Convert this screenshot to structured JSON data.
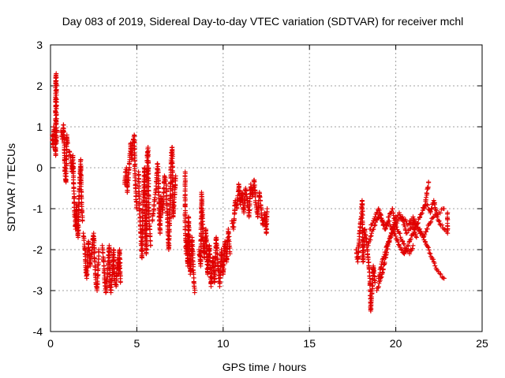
{
  "chart_data": {
    "type": "scatter",
    "title": "Day 083 of 2019, Sidereal Day-to-day VTEC variation (SDTVAR) for receiver mchl",
    "xlabel": "GPS time / hours",
    "ylabel": "SDTVAR / TECUs",
    "xlim": [
      0,
      25
    ],
    "ylim": [
      -4,
      3
    ],
    "xticks": [
      "0",
      "5",
      "10",
      "15",
      "20",
      "25"
    ],
    "yticks": [
      "-4",
      "-3",
      "-2",
      "-1",
      "0",
      "1",
      "2",
      "3"
    ],
    "grid": true,
    "marker": "plus",
    "color": "#e00000",
    "series": [
      {
        "name": "SDTVAR",
        "segments": [
          [
            [
              0.1,
              0.8
            ],
            [
              0.15,
              0.5
            ],
            [
              0.2,
              1.0
            ],
            [
              0.25,
              0.7
            ],
            [
              0.3,
              0.3
            ],
            [
              0.3,
              2.1
            ],
            [
              0.33,
              2.3
            ],
            [
              0.35,
              0.6
            ]
          ],
          [
            [
              0.6,
              0.9
            ],
            [
              0.7,
              0.7
            ],
            [
              0.75,
              1.05
            ],
            [
              0.8,
              0.5
            ],
            [
              0.85,
              -0.2
            ],
            [
              0.9,
              -0.35
            ],
            [
              0.95,
              0.8
            ],
            [
              1.0,
              0.6
            ]
          ],
          [
            [
              1.1,
              0.4
            ],
            [
              1.2,
              0.1
            ],
            [
              1.25,
              -0.1
            ],
            [
              1.3,
              0.3
            ],
            [
              1.35,
              -0.5
            ],
            [
              1.4,
              -1.1
            ],
            [
              1.45,
              -1.5
            ],
            [
              1.5,
              -0.9
            ],
            [
              1.55,
              -1.3
            ],
            [
              1.6,
              -1.7
            ],
            [
              1.65,
              -0.7
            ],
            [
              1.7,
              -0.3
            ],
            [
              1.75,
              0.2
            ],
            [
              1.8,
              -0.9
            ],
            [
              1.85,
              -1.3
            ]
          ],
          [
            [
              1.9,
              -1.6
            ],
            [
              2.0,
              -2.0
            ],
            [
              2.05,
              -2.5
            ],
            [
              2.1,
              -2.7
            ],
            [
              2.15,
              -2.2
            ],
            [
              2.2,
              -1.8
            ],
            [
              2.3,
              -2.4
            ],
            [
              2.4,
              -2.0
            ],
            [
              2.5,
              -1.6
            ],
            [
              2.55,
              -2.2
            ],
            [
              2.6,
              -2.6
            ],
            [
              2.65,
              -2.9
            ],
            [
              2.7,
              -3.0
            ],
            [
              2.75,
              -2.5
            ],
            [
              2.8,
              -2.0
            ]
          ],
          [
            [
              3.0,
              -1.9
            ],
            [
              3.1,
              -2.4
            ],
            [
              3.15,
              -2.8
            ],
            [
              3.2,
              -3.05
            ],
            [
              3.3,
              -2.6
            ],
            [
              3.35,
              -2.2
            ],
            [
              3.4,
              -1.9
            ],
            [
              3.45,
              -2.9
            ],
            [
              3.5,
              -3.05
            ],
            [
              3.6,
              -2.5
            ],
            [
              3.65,
              -2.0
            ],
            [
              3.7,
              -2.7
            ],
            [
              3.8,
              -2.9
            ],
            [
              3.9,
              -2.2
            ],
            [
              3.95,
              -2.6
            ],
            [
              4.0,
              -2.0
            ],
            [
              4.05,
              -2.8
            ]
          ],
          [
            [
              4.3,
              -0.4
            ],
            [
              4.35,
              -0.1
            ],
            [
              4.4,
              0.0
            ],
            [
              4.45,
              -0.6
            ],
            [
              4.5,
              -0.3
            ],
            [
              4.6,
              0.3
            ],
            [
              4.65,
              0.6
            ],
            [
              4.7,
              0.2
            ],
            [
              4.8,
              0.7
            ],
            [
              4.85,
              0.8
            ],
            [
              4.9,
              -0.2
            ],
            [
              4.95,
              -0.7
            ],
            [
              5.0,
              -1.0
            ]
          ],
          [
            [
              5.1,
              -0.1
            ],
            [
              5.15,
              -1.0
            ],
            [
              5.2,
              -1.4
            ],
            [
              5.25,
              -1.8
            ],
            [
              5.3,
              -2.2
            ],
            [
              5.35,
              -0.9
            ],
            [
              5.4,
              -0.6
            ],
            [
              5.45,
              0.0
            ],
            [
              5.5,
              -1.6
            ],
            [
              5.55,
              -2.1
            ],
            [
              5.6,
              0.3
            ],
            [
              5.65,
              0.5
            ],
            [
              5.7,
              -1.2
            ],
            [
              5.75,
              -1.5
            ],
            [
              5.8,
              -1.9
            ]
          ],
          [
            [
              5.9,
              -1.3
            ],
            [
              6.0,
              -0.9
            ],
            [
              6.1,
              -0.6
            ],
            [
              6.2,
              0.1
            ],
            [
              6.25,
              -0.2
            ],
            [
              6.3,
              -1.3
            ],
            [
              6.35,
              -1.6
            ],
            [
              6.4,
              -0.7
            ],
            [
              6.5,
              -1.1
            ],
            [
              6.6,
              -0.2
            ],
            [
              6.7,
              -0.4
            ],
            [
              6.75,
              -1.0
            ],
            [
              6.8,
              -1.5
            ],
            [
              6.85,
              -2.0
            ],
            [
              6.9,
              -1.3
            ],
            [
              6.95,
              -0.5
            ],
            [
              7.0,
              0.3
            ],
            [
              7.05,
              0.5
            ],
            [
              7.1,
              -1.2
            ],
            [
              7.2,
              -0.6
            ],
            [
              7.25,
              -0.2
            ]
          ],
          [
            [
              7.8,
              -0.1
            ],
            [
              7.8,
              -1.5
            ],
            [
              7.85,
              -2.1
            ],
            [
              7.9,
              -1.8
            ],
            [
              7.95,
              -2.4
            ],
            [
              8.0,
              -1.2
            ],
            [
              8.05,
              -2.0
            ],
            [
              8.1,
              -2.6
            ],
            [
              8.2,
              -1.7
            ],
            [
              8.25,
              -2.2
            ],
            [
              8.3,
              -2.8
            ],
            [
              8.35,
              -3.05
            ]
          ],
          [
            [
              8.6,
              -2.0
            ],
            [
              8.7,
              -2.4
            ],
            [
              8.75,
              -0.6
            ],
            [
              8.8,
              -1.2
            ],
            [
              8.85,
              -1.8
            ],
            [
              8.9,
              -2.2
            ],
            [
              9.0,
              -1.5
            ],
            [
              9.1,
              -2.6
            ],
            [
              9.2,
              -1.9
            ],
            [
              9.3,
              -2.9
            ],
            [
              9.4,
              -2.2
            ],
            [
              9.5,
              -2.8
            ],
            [
              9.6,
              -1.7
            ],
            [
              9.7,
              -2.4
            ],
            [
              9.8,
              -2.9
            ],
            [
              9.9,
              -2.0
            ],
            [
              10.0,
              -2.6
            ],
            [
              10.1,
              -1.8
            ],
            [
              10.2,
              -2.3
            ],
            [
              10.3,
              -1.5
            ],
            [
              10.4,
              -2.1
            ]
          ],
          [
            [
              10.5,
              -1.3
            ],
            [
              10.6,
              -1.5
            ],
            [
              10.7,
              -0.8
            ],
            [
              10.8,
              -1.0
            ],
            [
              10.9,
              -0.4
            ],
            [
              11.0,
              -0.9
            ],
            [
              11.1,
              -0.6
            ],
            [
              11.2,
              -1.1
            ],
            [
              11.3,
              -0.5
            ],
            [
              11.4,
              -0.8
            ],
            [
              11.5,
              -1.2
            ],
            [
              11.6,
              -0.4
            ],
            [
              11.7,
              -0.7
            ],
            [
              11.8,
              -0.3
            ],
            [
              11.9,
              -0.9
            ],
            [
              12.0,
              -1.2
            ],
            [
              12.1,
              -0.6
            ],
            [
              12.2,
              -1.0
            ],
            [
              12.3,
              -1.4
            ],
            [
              12.4,
              -1.1
            ],
            [
              12.5,
              -1.6
            ],
            [
              12.55,
              -1.0
            ]
          ],
          [
            [
              17.7,
              -2.0
            ],
            [
              17.8,
              -2.3
            ],
            [
              17.9,
              -1.6
            ],
            [
              18.0,
              -1.2
            ],
            [
              18.05,
              -0.8
            ],
            [
              18.1,
              -2.3
            ],
            [
              18.15,
              -1.9
            ],
            [
              18.2,
              -1.5
            ],
            [
              18.3,
              -1.8
            ],
            [
              18.4,
              -2.2
            ],
            [
              18.5,
              -2.7
            ],
            [
              18.55,
              -3.5
            ],
            [
              18.6,
              -3.2
            ],
            [
              18.65,
              -2.9
            ],
            [
              18.7,
              -2.4
            ],
            [
              18.8,
              -2.8
            ]
          ],
          [
            [
              18.9,
              -3.0
            ],
            [
              19.0,
              -2.9
            ],
            [
              19.2,
              -2.6
            ],
            [
              19.4,
              -2.2
            ],
            [
              19.6,
              -1.8
            ],
            [
              19.8,
              -1.5
            ],
            [
              20.0,
              -1.2
            ],
            [
              20.2,
              -1.1
            ],
            [
              20.4,
              -1.3
            ],
            [
              20.6,
              -1.6
            ],
            [
              20.8,
              -1.5
            ],
            [
              21.0,
              -1.4
            ],
            [
              21.2,
              -1.7
            ]
          ],
          [
            [
              18.4,
              -1.9
            ],
            [
              18.6,
              -1.6
            ],
            [
              18.8,
              -1.4
            ],
            [
              19.0,
              -1.2
            ],
            [
              19.2,
              -1.3
            ],
            [
              19.4,
              -1.5
            ],
            [
              19.6,
              -1.2
            ],
            [
              19.8,
              -1.0
            ],
            [
              20.0,
              -1.4
            ],
            [
              20.2,
              -1.6
            ],
            [
              20.4,
              -1.8
            ],
            [
              20.6,
              -2.0
            ],
            [
              20.8,
              -2.1
            ],
            [
              21.0,
              -1.9
            ]
          ],
          [
            [
              18.5,
              -1.5
            ],
            [
              18.8,
              -1.2
            ],
            [
              19.0,
              -1.0
            ],
            [
              19.3,
              -1.4
            ],
            [
              19.6,
              -1.3
            ],
            [
              19.9,
              -1.6
            ],
            [
              20.2,
              -1.9
            ],
            [
              20.5,
              -2.1
            ],
            [
              20.8,
              -1.8
            ],
            [
              21.1,
              -1.5
            ],
            [
              21.4,
              -1.2
            ],
            [
              21.7,
              -0.9
            ],
            [
              21.9,
              -0.35
            ]
          ],
          [
            [
              19.0,
              -2.7
            ],
            [
              19.2,
              -2.3
            ],
            [
              19.5,
              -1.9
            ],
            [
              19.8,
              -1.6
            ],
            [
              20.1,
              -1.3
            ],
            [
              20.4,
              -1.2
            ],
            [
              20.7,
              -1.4
            ],
            [
              21.0,
              -1.3
            ],
            [
              21.3,
              -1.5
            ],
            [
              21.6,
              -1.7
            ],
            [
              21.9,
              -1.4
            ],
            [
              22.2,
              -1.2
            ],
            [
              22.5,
              -1.1
            ],
            [
              22.8,
              -1.0
            ]
          ],
          [
            [
              20.8,
              -1.3
            ],
            [
              21.0,
              -1.2
            ],
            [
              21.2,
              -1.4
            ],
            [
              21.5,
              -1.6
            ],
            [
              21.8,
              -1.9
            ],
            [
              22.0,
              -2.1
            ],
            [
              22.2,
              -2.3
            ],
            [
              22.4,
              -2.5
            ],
            [
              22.6,
              -2.6
            ],
            [
              22.8,
              -2.7
            ]
          ],
          [
            [
              21.6,
              -1.0
            ],
            [
              21.8,
              -0.9
            ],
            [
              22.0,
              -1.1
            ],
            [
              22.2,
              -0.8
            ],
            [
              22.4,
              -1.2
            ],
            [
              22.6,
              -1.4
            ],
            [
              22.8,
              -1.5
            ],
            [
              23.0,
              -1.6
            ],
            [
              23.0,
              -1.1
            ]
          ]
        ]
      }
    ]
  }
}
